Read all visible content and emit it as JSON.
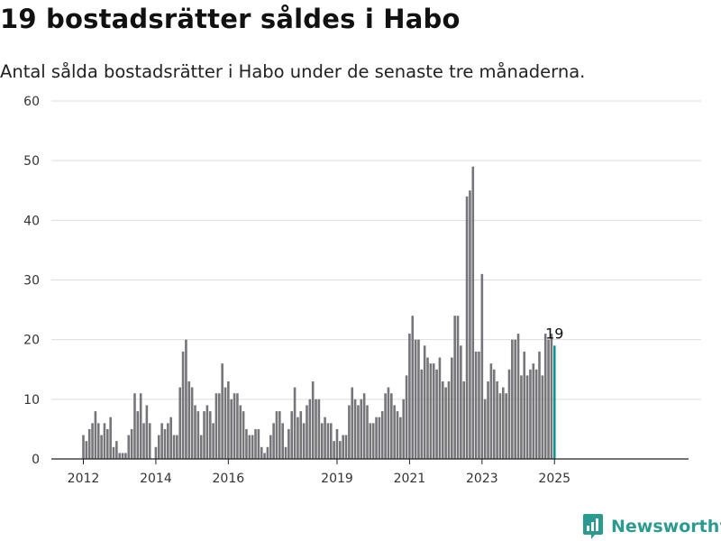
{
  "title": "19 bostadsrätter såldes i Habo",
  "subtitle": "Antal sålda bostadsrätter i Habo under de senaste tre månaderna.",
  "brand": {
    "name": "Newsworthy",
    "logo_icon": "newsworthy-logo-icon",
    "color": "#2b9b8f"
  },
  "colors": {
    "bar": "#76757a",
    "highlight": "#12948e",
    "grid": "#dddddd"
  },
  "chart_data": {
    "type": "bar",
    "title": "19 bostadsrätter såldes i Habo",
    "subtitle": "Antal sålda bostadsrätter i Habo under de senaste tre månaderna.",
    "xlabel": "",
    "ylabel": "",
    "ylim": [
      0,
      60
    ],
    "yticks": [
      0,
      10,
      20,
      30,
      40,
      50,
      60
    ],
    "xticks": [
      "2012",
      "2014",
      "2016",
      "2019",
      "2021",
      "2023",
      "2025"
    ],
    "grid": true,
    "highlight": {
      "index": "last",
      "label": "19"
    },
    "values": [
      4,
      3,
      5,
      6,
      8,
      6,
      4,
      6,
      5,
      7,
      2,
      3,
      1,
      1,
      1,
      4,
      5,
      11,
      8,
      11,
      6,
      9,
      6,
      0,
      2,
      4,
      6,
      5,
      6,
      7,
      4,
      4,
      12,
      18,
      20,
      13,
      12,
      9,
      8,
      4,
      8,
      9,
      8,
      6,
      11,
      11,
      16,
      12,
      13,
      10,
      11,
      11,
      9,
      8,
      5,
      4,
      4,
      5,
      5,
      2,
      1,
      2,
      4,
      6,
      8,
      8,
      6,
      2,
      5,
      8,
      12,
      7,
      8,
      6,
      9,
      10,
      13,
      10,
      10,
      6,
      7,
      6,
      6,
      3,
      5,
      3,
      4,
      4,
      9,
      12,
      10,
      9,
      10,
      11,
      9,
      6,
      6,
      7,
      7,
      8,
      11,
      12,
      11,
      9,
      8,
      7,
      10,
      14,
      21,
      24,
      20,
      20,
      15,
      19,
      17,
      16,
      16,
      15,
      17,
      13,
      12,
      13,
      17,
      24,
      24,
      19,
      13,
      44,
      45,
      49,
      18,
      18,
      31,
      10,
      13,
      16,
      15,
      13,
      11,
      12,
      11,
      15,
      20,
      20,
      21,
      14,
      18,
      14,
      15,
      16,
      15,
      18,
      14,
      21,
      20,
      21,
      19
    ]
  }
}
